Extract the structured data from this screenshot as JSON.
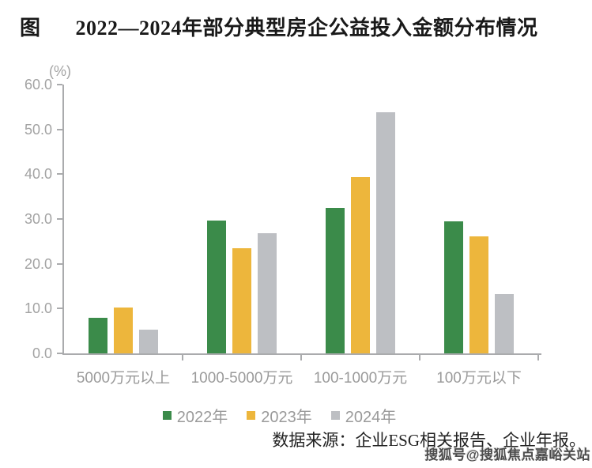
{
  "title": {
    "prefix": "图",
    "text": "2022—2024年部分典型房企公益投入金额分布情况"
  },
  "chart_data": {
    "type": "bar",
    "title": "2022—2024年部分典型房企公益投入金额分布情况",
    "ylabel": "(%)",
    "xlabel": "",
    "categories": [
      "5000万元以上",
      "1000-5000万元",
      "100-1000万元",
      "100万元以下"
    ],
    "series": [
      {
        "name": "2022年",
        "color": "#3b8b4a",
        "values": [
          8.0,
          29.6,
          32.4,
          29.4
        ]
      },
      {
        "name": "2023年",
        "color": "#edb63c",
        "values": [
          10.3,
          23.5,
          39.3,
          26.1
        ]
      },
      {
        "name": "2024年",
        "color": "#bdbfc3",
        "values": [
          5.3,
          26.8,
          53.9,
          13.3
        ]
      }
    ],
    "ylim": [
      0,
      60
    ],
    "ytick_step": 10,
    "ytick_labels": [
      "0.0",
      "10.0",
      "20.0",
      "30.0",
      "40.0",
      "50.0",
      "60.0"
    ],
    "grid": false,
    "legend_position": "bottom"
  },
  "source_note": "数据来源：企业ESG相关报告、企业年报。",
  "watermark": "搜狐号@搜狐焦点嘉峪关站",
  "colors": {
    "axis": "#aaabad",
    "tick_text": "#a3a3a3",
    "category_text": "#9a9a9a",
    "legend_text": "#9a9a9a",
    "title_text": "#191919",
    "source_text": "#222222",
    "watermark_text": "#4c4c4c",
    "background": "#ffffff"
  }
}
